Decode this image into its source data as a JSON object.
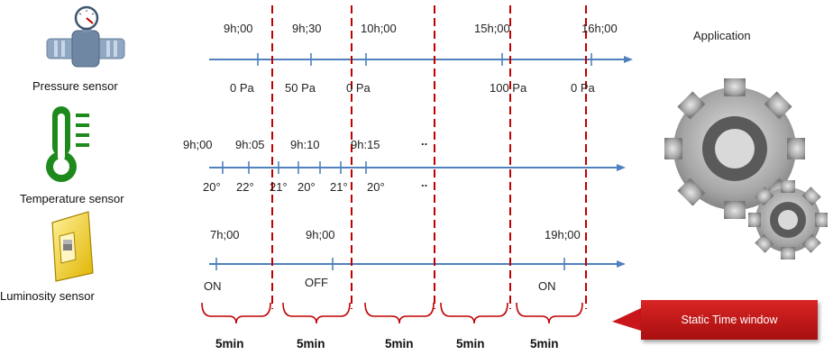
{
  "sensors": [
    {
      "label": "Pressure sensor",
      "icon": "pressure-gauge-icon",
      "times": [
        "9h;00",
        "9h;30",
        "10h;00",
        "15h;00",
        "16h;00"
      ],
      "values": [
        "0 Pa",
        "50 Pa",
        "0 Pa",
        "100 Pa",
        "0 Pa"
      ]
    },
    {
      "label": "Temperature sensor",
      "icon": "thermometer-icon",
      "times": [
        "9h;00",
        "9h:05",
        "9h:10",
        "9h:15"
      ],
      "ellipsis": "..",
      "values": [
        "20°",
        "22°",
        "21°",
        "20°",
        "21°",
        "20°"
      ],
      "values_ellipsis": ".."
    },
    {
      "label": "Luminosity sensor",
      "icon": "light-switch-icon",
      "times": [
        "7h;00",
        "9h;00",
        "19h;00"
      ],
      "values": [
        "ON",
        "OFF",
        "ON"
      ]
    }
  ],
  "windows": [
    "5min",
    "5min",
    "5min",
    "5min",
    "5min"
  ],
  "application": {
    "label": "Application",
    "icon": "gears-icon"
  },
  "banner": {
    "label": "Static Time window",
    "color": "#c8161b"
  },
  "colors": {
    "axis": "#4f81bd",
    "divider": "#c00000",
    "brace": "#c00000",
    "thermo": "#1e8a1e"
  }
}
